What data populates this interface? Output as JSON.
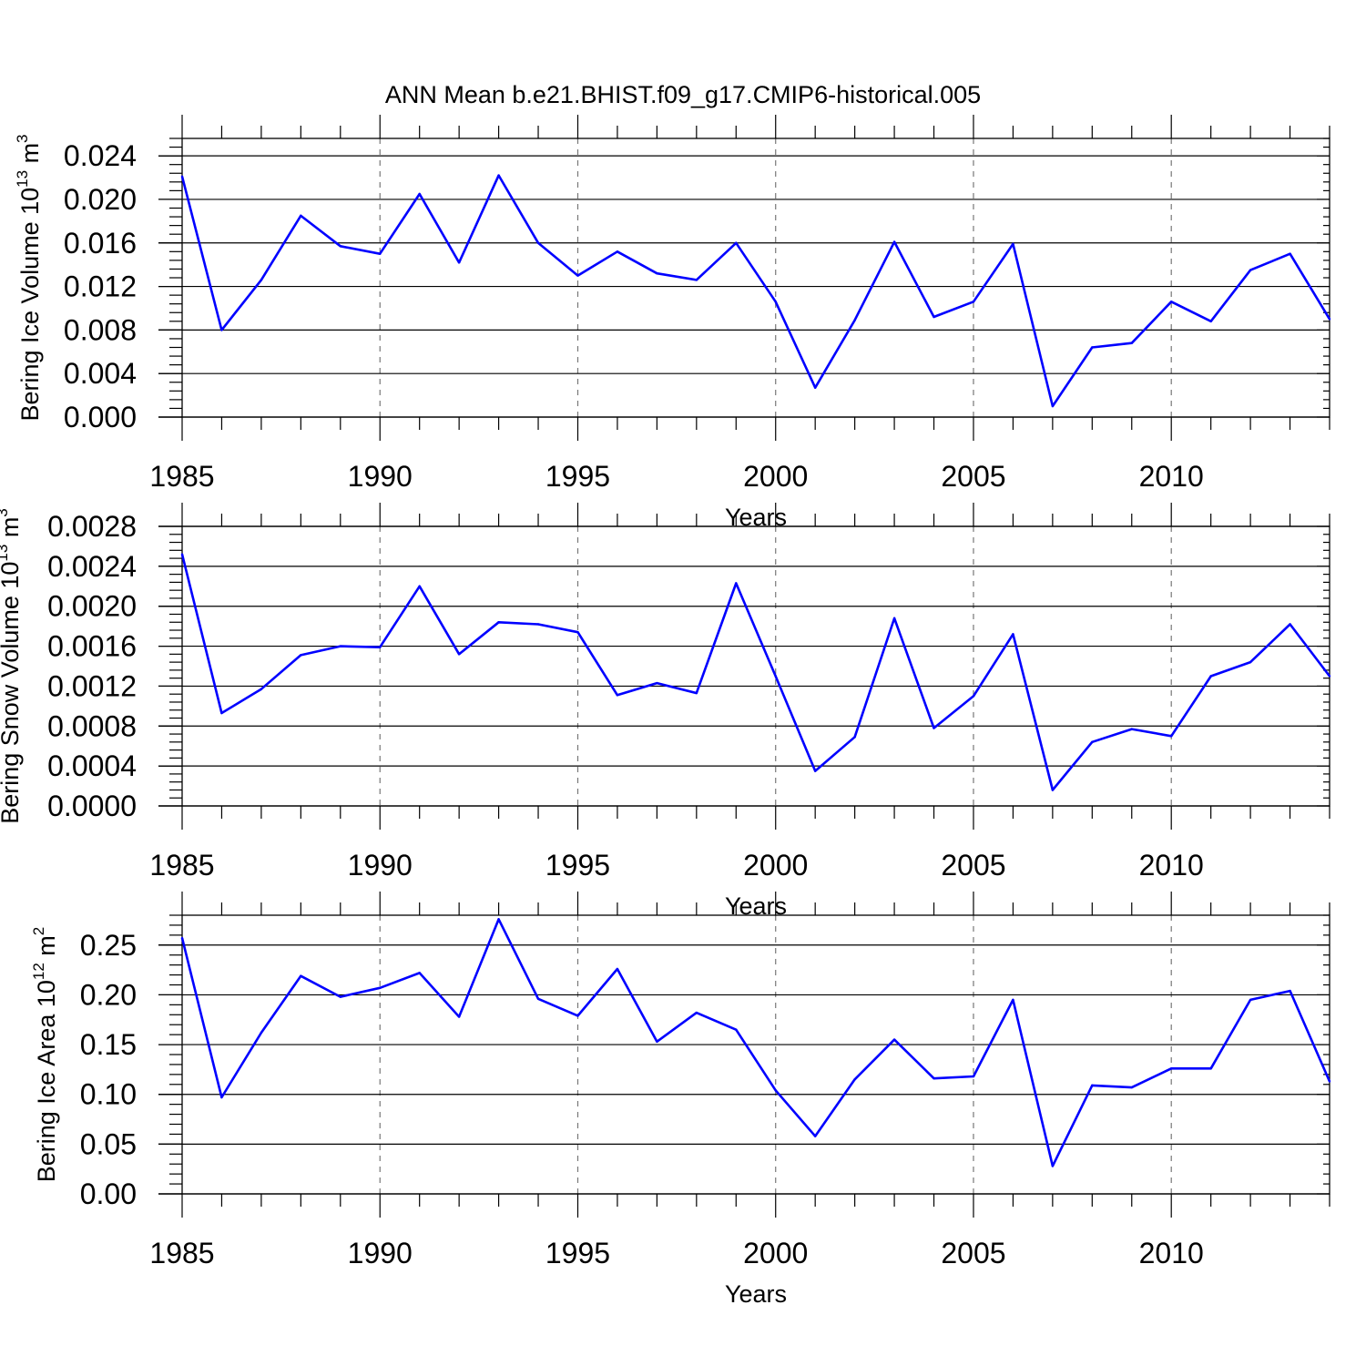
{
  "title": "ANN Mean b.e21.BHIST.f09_g17.CMIP6-historical.005",
  "series_color": "#0000ff",
  "chart_data": [
    {
      "type": "line",
      "ylabel": "Bering Ice Volume 10",
      "ylabel_exp": "13",
      "ylabel_unit": " m",
      "ylabel_unit_exp": "3",
      "xlabel": "Years",
      "xlim": [
        1985,
        2014
      ],
      "ylim": [
        0,
        0.0256
      ],
      "xticks": [
        "1985",
        "1990",
        "1995",
        "2000",
        "2005",
        "2010"
      ],
      "yticks": [
        "0.000",
        "0.004",
        "0.008",
        "0.012",
        "0.016",
        "0.020",
        "0.024"
      ],
      "x": [
        1985,
        1986,
        1987,
        1988,
        1989,
        1990,
        1991,
        1992,
        1993,
        1994,
        1995,
        1996,
        1997,
        1998,
        1999,
        2000,
        2001,
        2002,
        2003,
        2004,
        2005,
        2006,
        2007,
        2008,
        2009,
        2010,
        2011,
        2012,
        2013,
        2014
      ],
      "y": [
        0.0221,
        0.008,
        0.0126,
        0.0185,
        0.0157,
        0.015,
        0.0205,
        0.0142,
        0.0222,
        0.016,
        0.013,
        0.0152,
        0.0132,
        0.0126,
        0.016,
        0.0106,
        0.0027,
        0.0089,
        0.0161,
        0.0092,
        0.0106,
        0.0159,
        0.001,
        0.0064,
        0.0068,
        0.0106,
        0.0088,
        0.0135,
        0.015,
        0.009
      ]
    },
    {
      "type": "line",
      "ylabel": "Bering Snow Volume 10",
      "ylabel_exp": "13",
      "ylabel_unit": " m",
      "ylabel_unit_exp": "3",
      "xlabel": "Years",
      "xlim": [
        1985,
        2014
      ],
      "ylim": [
        0,
        0.0028
      ],
      "xticks": [
        "1985",
        "1990",
        "1995",
        "2000",
        "2005",
        "2010"
      ],
      "yticks": [
        "0.0000",
        "0.0004",
        "0.0008",
        "0.0012",
        "0.0016",
        "0.0020",
        "0.0024",
        "0.0028"
      ],
      "x": [
        1985,
        1986,
        1987,
        1988,
        1989,
        1990,
        1991,
        1992,
        1993,
        1994,
        1995,
        1996,
        1997,
        1998,
        1999,
        2000,
        2001,
        2002,
        2003,
        2004,
        2005,
        2006,
        2007,
        2008,
        2009,
        2010,
        2011,
        2012,
        2013,
        2014
      ],
      "y": [
        0.00252,
        0.00093,
        0.00117,
        0.00151,
        0.0016,
        0.00159,
        0.0022,
        0.00152,
        0.00184,
        0.00182,
        0.00174,
        0.00111,
        0.00123,
        0.00113,
        0.00223,
        0.0013,
        0.00035,
        0.00069,
        0.00188,
        0.00078,
        0.0011,
        0.00172,
        0.00016,
        0.00064,
        0.00077,
        0.0007,
        0.0013,
        0.00144,
        0.00182,
        0.0013
      ]
    },
    {
      "type": "line",
      "ylabel": "Bering Ice Area 10",
      "ylabel_exp": "12",
      "ylabel_unit": " m",
      "ylabel_unit_exp": "2",
      "xlabel": "Years",
      "xlim": [
        1985,
        2014
      ],
      "ylim": [
        0,
        0.28
      ],
      "xticks": [
        "1985",
        "1990",
        "1995",
        "2000",
        "2005",
        "2010"
      ],
      "yticks": [
        "0.00",
        "0.05",
        "0.10",
        "0.15",
        "0.20",
        "0.25"
      ],
      "x": [
        1985,
        1986,
        1987,
        1988,
        1989,
        1990,
        1991,
        1992,
        1993,
        1994,
        1995,
        1996,
        1997,
        1998,
        1999,
        2000,
        2001,
        2002,
        2003,
        2004,
        2005,
        2006,
        2007,
        2008,
        2009,
        2010,
        2011,
        2012,
        2013,
        2014
      ],
      "y": [
        0.257,
        0.097,
        0.162,
        0.219,
        0.198,
        0.207,
        0.222,
        0.178,
        0.276,
        0.196,
        0.179,
        0.226,
        0.153,
        0.182,
        0.165,
        0.104,
        0.058,
        0.115,
        0.155,
        0.116,
        0.118,
        0.195,
        0.028,
        0.109,
        0.107,
        0.126,
        0.126,
        0.195,
        0.204,
        0.113
      ]
    }
  ]
}
